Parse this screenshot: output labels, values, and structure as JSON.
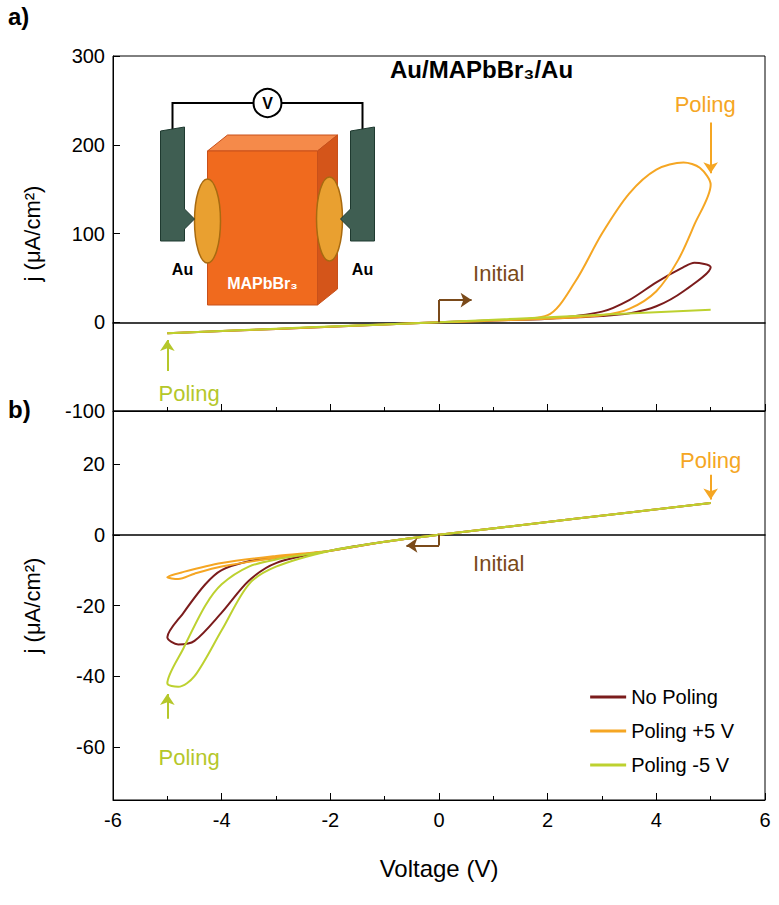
{
  "chart_data": [
    {
      "type": "line",
      "panel_label": "a)",
      "title": "Au/MAPbBr₃/Au",
      "y_label": "j (μA/cm²)",
      "xlim": [
        -6,
        6
      ],
      "xticks": [
        -6,
        -4,
        -2,
        0,
        2,
        4,
        6
      ],
      "ylim": [
        -100,
        300
      ],
      "yticks": [
        -100,
        0,
        100,
        200,
        300
      ],
      "tick_labels": "y",
      "inset_labels": {
        "meter": "V",
        "left_electrode": "Au",
        "right_electrode": "Au",
        "crystal": "MAPbBr₃"
      },
      "series": [
        {
          "name": "No Poling",
          "color": "#7b1c1c",
          "x": [
            0,
            1,
            2,
            3,
            3.5,
            4,
            4.5,
            4.7,
            5,
            4.5,
            4,
            3.5,
            3,
            2,
            1,
            0,
            -1,
            -3,
            -5,
            -3,
            -1,
            0
          ],
          "values": [
            0,
            2,
            4,
            12,
            25,
            45,
            62,
            67,
            62,
            35,
            18,
            10,
            7,
            4,
            2,
            0,
            -2.5,
            -7.5,
            -12.5,
            -7.5,
            -2.5,
            0
          ]
        },
        {
          "name": "Poling +5 V",
          "color": "#f5a623",
          "x": [
            0,
            1,
            2,
            2.5,
            3,
            3.5,
            4,
            4.5,
            4.8,
            5,
            4.7,
            4.4,
            4,
            3.5,
            3,
            2,
            1,
            0,
            -1,
            -3,
            -5,
            -3,
            -1,
            0
          ],
          "values": [
            0,
            2,
            8,
            45,
            100,
            145,
            172,
            180,
            174,
            155,
            110,
            70,
            35,
            15,
            8,
            4,
            2,
            0,
            -2.5,
            -7.5,
            -12.5,
            -7.5,
            -2.5,
            0
          ]
        },
        {
          "name": "Poling -5 V",
          "color": "#bdd12f",
          "x": [
            0,
            2.5,
            5,
            2.5,
            0,
            -2.5,
            -5,
            -2.5,
            0
          ],
          "values": [
            0,
            7,
            14,
            7,
            0,
            -6,
            -12.5,
            -6,
            0
          ]
        }
      ],
      "annotations": [
        {
          "text": "Poling",
          "color": "#f5a623",
          "x": 4.9,
          "y": 245,
          "arrow": [
            [
              5,
              225
            ],
            [
              5,
              168
            ]
          ]
        },
        {
          "text": "Poling",
          "color": "#b5c72a",
          "x": -4.6,
          "y": -80,
          "arrow": [
            [
              -5,
              -55
            ],
            [
              -5,
              -20
            ]
          ]
        },
        {
          "text": "Initial",
          "color": "#7a4a1a",
          "x": 1.1,
          "y": 55,
          "arrow": [
            [
              0,
              0
            ],
            [
              0,
              25
            ],
            [
              0.6,
              25
            ]
          ]
        }
      ]
    },
    {
      "type": "line",
      "panel_label": "b)",
      "x_label": "Voltage (V)",
      "y_label": "j (μA/cm²)",
      "xlim": [
        -6,
        6
      ],
      "xticks": [
        -6,
        -4,
        -2,
        0,
        2,
        4,
        6
      ],
      "ylim": [
        -75,
        35
      ],
      "yticks": [
        -60,
        -40,
        -20,
        0,
        20
      ],
      "legend": "bottom-right",
      "series": [
        {
          "name": "No Poling",
          "color": "#7b1c1c",
          "x": [
            0,
            2.5,
            5,
            2.5,
            0,
            -1,
            -2,
            -3,
            -3.5,
            -4,
            -4.5,
            -4.8,
            -5,
            -4.7,
            -4.3,
            -4,
            -3.5,
            -3,
            -2,
            -1,
            0
          ],
          "values": [
            0,
            4.5,
            9,
            4.5,
            0,
            -2,
            -4.5,
            -8,
            -13,
            -22,
            -30,
            -31,
            -29,
            -22,
            -14,
            -10,
            -7.5,
            -6.5,
            -4.5,
            -2,
            0
          ]
        },
        {
          "name": "Poling +5 V",
          "color": "#f5a623",
          "x": [
            0,
            2.5,
            5,
            2.5,
            0,
            -1,
            -2,
            -3,
            -4,
            -4.5,
            -4.8,
            -5,
            -4.7,
            -4,
            -3,
            -2,
            -1,
            0
          ],
          "values": [
            0,
            4.5,
            9,
            4.5,
            0,
            -2,
            -4.5,
            -6.5,
            -9,
            -11,
            -12.5,
            -12,
            -10.5,
            -8,
            -6,
            -4.5,
            -2,
            0
          ]
        },
        {
          "name": "Poling -5 V",
          "color": "#bdd12f",
          "x": [
            0,
            2.5,
            5,
            2.5,
            0,
            -1,
            -2,
            -3,
            -3.5,
            -4,
            -4.5,
            -4.8,
            -5,
            -4.7,
            -4.3,
            -4,
            -3.5,
            -3,
            -2,
            -1,
            0
          ],
          "values": [
            0,
            4.5,
            9,
            4.5,
            0,
            -2,
            -4.5,
            -9,
            -14,
            -27,
            -40,
            -43,
            -42,
            -32,
            -20,
            -14,
            -9,
            -7,
            -4.5,
            -2,
            0
          ]
        }
      ],
      "annotations": [
        {
          "text": "Poling",
          "color": "#f5a623",
          "x": 5,
          "y": 21,
          "arrow": [
            [
              5,
              17
            ],
            [
              5,
              10
            ]
          ]
        },
        {
          "text": "Poling",
          "color": "#b5c72a",
          "x": -4.6,
          "y": -63,
          "arrow": [
            [
              -5,
              -52
            ],
            [
              -5,
              -45
            ]
          ]
        },
        {
          "text": "Initial",
          "color": "#7a4a1a",
          "x": 1.1,
          "y": -8,
          "arrow": [
            [
              0,
              0
            ],
            [
              0,
              -3
            ],
            [
              -0.6,
              -3
            ]
          ]
        }
      ]
    }
  ]
}
